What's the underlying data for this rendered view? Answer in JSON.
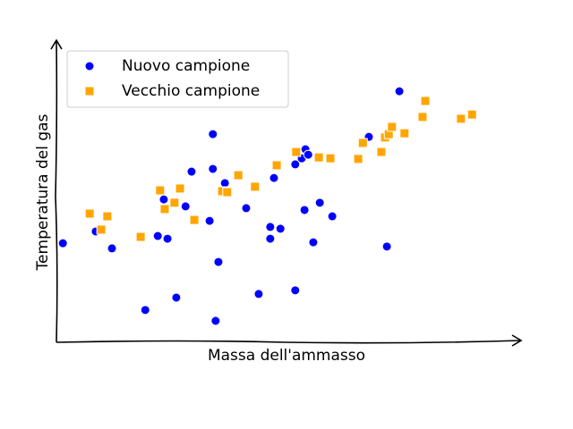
{
  "chart_data": {
    "type": "scatter",
    "x_label": "Massa dell'ammasso",
    "y_label": "Temperatura del gas",
    "xlim": [
      0,
      100
    ],
    "ylim": [
      0,
      100
    ],
    "legend": "upper left",
    "series": [
      {
        "name": "Nuovo campione",
        "color": "#0000ff",
        "marker": "circle",
        "x": [
          1.4,
          8.5,
          12.0,
          19.2,
          21.9,
          23.2,
          24.0,
          25.9,
          27.9,
          29.2,
          33.1,
          33.8,
          33.8,
          34.4,
          35.0,
          36.4,
          41.0,
          43.7,
          46.2,
          46.2,
          47.0,
          48.4,
          51.6,
          51.6,
          53.0,
          53.6,
          53.8,
          54.4,
          55.5,
          56.9,
          59.6,
          67.5,
          71.4,
          74.1
        ],
        "values": [
          32.8,
          36.7,
          31.1,
          10.7,
          35.2,
          47.3,
          34.3,
          14.8,
          45.0,
          56.5,
          40.2,
          68.9,
          57.4,
          7.1,
          26.6,
          52.7,
          44.4,
          16.0,
          38.2,
          34.3,
          54.4,
          37.6,
          58.9,
          17.2,
          60.9,
          43.8,
          63.9,
          62.1,
          33.1,
          46.2,
          41.7,
          68.0,
          31.7,
          83.1
        ]
      },
      {
        "name": "Vecchio campione",
        "color": "#ffa500",
        "marker": "square",
        "x": [
          7.2,
          9.7,
          11.0,
          18.2,
          22.4,
          23.4,
          25.5,
          26.7,
          29.8,
          35.8,
          36.9,
          39.3,
          42.9,
          47.6,
          51.8,
          56.7,
          59.2,
          65.2,
          66.2,
          70.2,
          71.0,
          71.8,
          72.5,
          75.2,
          79.1,
          79.7,
          87.4,
          89.8
        ],
        "values": [
          42.6,
          37.3,
          41.7,
          34.9,
          50.3,
          44.1,
          46.2,
          50.9,
          40.5,
          50.0,
          49.7,
          55.3,
          51.5,
          58.6,
          63.0,
          61.2,
          60.9,
          60.7,
          66.0,
          63.0,
          67.8,
          68.9,
          71.3,
          69.2,
          74.6,
          79.9,
          74.0,
          75.4
        ]
      }
    ]
  }
}
